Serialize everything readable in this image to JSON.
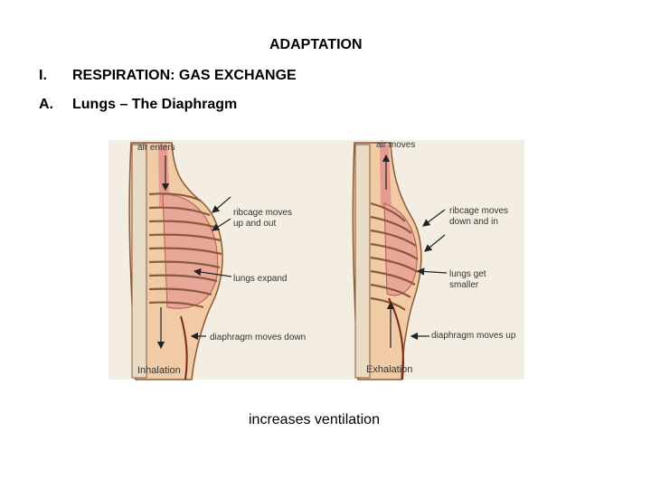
{
  "title": "ADAPTATION",
  "outline": [
    {
      "marker": "I.",
      "text": "RESPIRATION: GAS EXCHANGE"
    },
    {
      "marker": "A.",
      "text": "Lungs – The Diaphragm"
    }
  ],
  "figure": {
    "panels": [
      {
        "caption": "Inhalation",
        "labels": [
          {
            "lines": [
              "air enters"
            ]
          },
          {
            "lines": [
              "ribcage moves",
              "up and out"
            ]
          },
          {
            "lines": [
              "lungs expand"
            ]
          },
          {
            "lines": [
              "diaphragm moves down"
            ]
          }
        ]
      },
      {
        "caption": "Exhalation",
        "labels": [
          {
            "lines": [
              "air moves"
            ]
          },
          {
            "lines": [
              "ribcage moves",
              "down and in"
            ]
          },
          {
            "lines": [
              "lungs get",
              "smaller"
            ]
          },
          {
            "lines": [
              "diaphragm moves up"
            ]
          }
        ]
      }
    ]
  },
  "caption": "increases ventilation"
}
